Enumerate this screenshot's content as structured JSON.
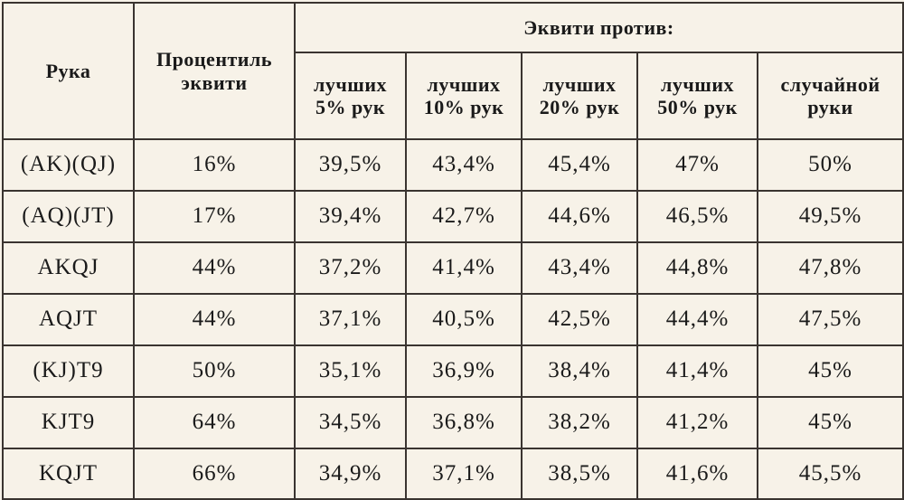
{
  "header": {
    "hand": "Рука",
    "percentile_line1": "Процентиль",
    "percentile_line2": "эквити",
    "equity_vs": "Эквити против:",
    "columns": [
      {
        "line1": "лучших",
        "line2": "5% рук"
      },
      {
        "line1": "лучших",
        "line2": "10% рук"
      },
      {
        "line1": "лучших",
        "line2": "20% рук"
      },
      {
        "line1": "лучших",
        "line2": "50% рук"
      },
      {
        "line1": "случайной",
        "line2": "руки"
      }
    ]
  },
  "rows": [
    {
      "hand": "(AK)(QJ)",
      "percentile": "16%",
      "v5": "39,5%",
      "v10": "43,4%",
      "v20": "45,4%",
      "v50": "47%",
      "vrand": "50%"
    },
    {
      "hand": "(AQ)(JT)",
      "percentile": "17%",
      "v5": "39,4%",
      "v10": "42,7%",
      "v20": "44,6%",
      "v50": "46,5%",
      "vrand": "49,5%"
    },
    {
      "hand": "AKQJ",
      "percentile": "44%",
      "v5": "37,2%",
      "v10": "41,4%",
      "v20": "43,4%",
      "v50": "44,8%",
      "vrand": "47,8%"
    },
    {
      "hand": "AQJT",
      "percentile": "44%",
      "v5": "37,1%",
      "v10": "40,5%",
      "v20": "42,5%",
      "v50": "44,4%",
      "vrand": "47,5%"
    },
    {
      "hand": "(KJ)T9",
      "percentile": "50%",
      "v5": "35,1%",
      "v10": "36,9%",
      "v20": "38,4%",
      "v50": "41,4%",
      "vrand": "45%"
    },
    {
      "hand": "KJT9",
      "percentile": "64%",
      "v5": "34,5%",
      "v10": "36,8%",
      "v20": "38,2%",
      "v50": "41,2%",
      "vrand": "45%"
    },
    {
      "hand": "KQJT",
      "percentile": "66%",
      "v5": "34,9%",
      "v10": "37,1%",
      "v20": "38,5%",
      "v50": "41,6%",
      "vrand": "45,5%"
    }
  ]
}
